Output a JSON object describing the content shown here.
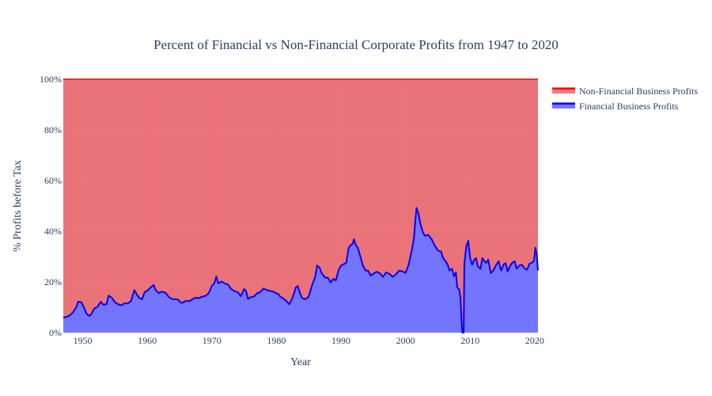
{
  "chart_data": {
    "type": "area",
    "title": "Percent of Financial vs Non-Financial Corporate Profits from 1947 to 2020",
    "xlabel": "Year",
    "ylabel": "% Profits before Tax",
    "xlim": [
      1947,
      2020.5
    ],
    "ylim": [
      0,
      100
    ],
    "x_ticks": [
      1950,
      1960,
      1970,
      1980,
      1990,
      2000,
      2010,
      2020
    ],
    "y_ticks": [
      0,
      20,
      40,
      60,
      80,
      100
    ],
    "y_tick_suffix": "%",
    "stacked": true,
    "legend_position": "top-right",
    "grid": true,
    "series": [
      {
        "name": "Non-Financial Business Profits",
        "color": "#ff0000",
        "fill": "rgba(237,40,45,0.62)",
        "note": "stacked to 100 on top of financial share"
      },
      {
        "name": "Financial Business Profits",
        "color": "#0000ff",
        "fill": "rgba(90,90,255,0.82)",
        "points": [
          [
            1947.0,
            6
          ],
          [
            1947.5,
            6.2
          ],
          [
            1948.0,
            6.8
          ],
          [
            1948.5,
            8
          ],
          [
            1949.0,
            10
          ],
          [
            1949.3,
            12.2
          ],
          [
            1949.8,
            12
          ],
          [
            1950.2,
            10
          ],
          [
            1950.6,
            7.5
          ],
          [
            1951.0,
            6.6
          ],
          [
            1951.3,
            7.2
          ],
          [
            1951.8,
            9.5
          ],
          [
            1952.3,
            10.2
          ],
          [
            1952.8,
            12.2
          ],
          [
            1953.2,
            11
          ],
          [
            1953.7,
            11.2
          ],
          [
            1954.0,
            14.6
          ],
          [
            1954.5,
            13.8
          ],
          [
            1955.0,
            12
          ],
          [
            1955.5,
            11.2
          ],
          [
            1956.0,
            10.8
          ],
          [
            1956.5,
            11.6
          ],
          [
            1957.0,
            11.5
          ],
          [
            1957.5,
            12.5
          ],
          [
            1958.0,
            16.8
          ],
          [
            1958.4,
            15
          ],
          [
            1958.8,
            13.6
          ],
          [
            1959.2,
            13.2
          ],
          [
            1959.6,
            16
          ],
          [
            1960.0,
            16.5
          ],
          [
            1960.5,
            17.8
          ],
          [
            1961.0,
            18.8
          ],
          [
            1961.3,
            16.8
          ],
          [
            1961.8,
            15.6
          ],
          [
            1962.2,
            16.2
          ],
          [
            1962.8,
            15.8
          ],
          [
            1963.3,
            14.2
          ],
          [
            1963.8,
            13.3
          ],
          [
            1964.3,
            13.2
          ],
          [
            1964.8,
            13
          ],
          [
            1965.2,
            11.8
          ],
          [
            1965.6,
            12
          ],
          [
            1966.0,
            12.6
          ],
          [
            1966.5,
            12.4
          ],
          [
            1967.0,
            13.2
          ],
          [
            1967.5,
            13.8
          ],
          [
            1968.0,
            13.6
          ],
          [
            1968.5,
            14.2
          ],
          [
            1969.0,
            14.5
          ],
          [
            1969.5,
            15.5
          ],
          [
            1970.0,
            18.4
          ],
          [
            1970.4,
            19.6
          ],
          [
            1970.7,
            22.2
          ],
          [
            1971.0,
            19.4
          ],
          [
            1971.5,
            20.2
          ],
          [
            1972.0,
            19.4
          ],
          [
            1972.5,
            19
          ],
          [
            1973.0,
            17.2
          ],
          [
            1973.5,
            16.4
          ],
          [
            1974.0,
            16
          ],
          [
            1974.5,
            14.4
          ],
          [
            1975.0,
            17.2
          ],
          [
            1975.3,
            16.4
          ],
          [
            1975.6,
            13.3
          ],
          [
            1976.0,
            14
          ],
          [
            1976.5,
            14.2
          ],
          [
            1977.0,
            15.5
          ],
          [
            1977.5,
            16
          ],
          [
            1978.0,
            17.4
          ],
          [
            1978.5,
            16.8
          ],
          [
            1979.0,
            16.5
          ],
          [
            1979.5,
            16.2
          ],
          [
            1980.0,
            15.5
          ],
          [
            1980.3,
            15.2
          ],
          [
            1980.6,
            14.2
          ],
          [
            1981.0,
            13.6
          ],
          [
            1981.5,
            12.6
          ],
          [
            1982.0,
            11.2
          ],
          [
            1982.5,
            13.8
          ],
          [
            1983.0,
            17.8
          ],
          [
            1983.3,
            18.4
          ],
          [
            1983.7,
            15.2
          ],
          [
            1984.0,
            13.6
          ],
          [
            1984.5,
            13.2
          ],
          [
            1985.0,
            14.2
          ],
          [
            1985.5,
            18.6
          ],
          [
            1986.0,
            22
          ],
          [
            1986.3,
            26.5
          ],
          [
            1986.7,
            25.6
          ],
          [
            1987.0,
            23.5
          ],
          [
            1987.5,
            21.8
          ],
          [
            1988.0,
            21.6
          ],
          [
            1988.4,
            19.8
          ],
          [
            1988.8,
            21.2
          ],
          [
            1989.2,
            20.6
          ],
          [
            1989.6,
            24.5
          ],
          [
            1990.0,
            26.5
          ],
          [
            1990.4,
            27
          ],
          [
            1990.8,
            27.5
          ],
          [
            1991.2,
            33.5
          ],
          [
            1991.5,
            34.5
          ],
          [
            1991.8,
            35
          ],
          [
            1992.0,
            36.8
          ],
          [
            1992.3,
            34.5
          ],
          [
            1992.6,
            33.5
          ],
          [
            1993.0,
            30
          ],
          [
            1993.4,
            26.5
          ],
          [
            1993.8,
            24.5
          ],
          [
            1994.2,
            24.5
          ],
          [
            1994.6,
            22.5
          ],
          [
            1995.0,
            23.2
          ],
          [
            1995.5,
            24
          ],
          [
            1996.0,
            23.5
          ],
          [
            1996.5,
            22
          ],
          [
            1997.0,
            23.8
          ],
          [
            1997.5,
            23.2
          ],
          [
            1998.0,
            22
          ],
          [
            1998.5,
            23
          ],
          [
            1999.0,
            24.5
          ],
          [
            1999.5,
            24.2
          ],
          [
            2000.0,
            23.6
          ],
          [
            2000.5,
            27
          ],
          [
            2001.0,
            33
          ],
          [
            2001.3,
            37.5
          ],
          [
            2001.5,
            44
          ],
          [
            2001.7,
            49.2
          ],
          [
            2002.0,
            47
          ],
          [
            2002.3,
            43
          ],
          [
            2002.7,
            39.5
          ],
          [
            2003.0,
            38.2
          ],
          [
            2003.5,
            38.6
          ],
          [
            2004.0,
            37
          ],
          [
            2004.5,
            34.5
          ],
          [
            2005.0,
            32.4
          ],
          [
            2005.5,
            32
          ],
          [
            2005.8,
            29.5
          ],
          [
            2006.2,
            28.2
          ],
          [
            2006.5,
            27
          ],
          [
            2006.8,
            24.5
          ],
          [
            2007.2,
            25.2
          ],
          [
            2007.5,
            22.2
          ],
          [
            2007.8,
            23.8
          ],
          [
            2008.0,
            17.8
          ],
          [
            2008.3,
            17.2
          ],
          [
            2008.5,
            14
          ],
          [
            2008.7,
            3
          ],
          [
            2008.8,
            0
          ],
          [
            2009.0,
            0
          ],
          [
            2009.1,
            27
          ],
          [
            2009.4,
            34
          ],
          [
            2009.7,
            36.2
          ],
          [
            2010.0,
            29.5
          ],
          [
            2010.3,
            26.8
          ],
          [
            2010.6,
            28.6
          ],
          [
            2010.9,
            29.4
          ],
          [
            2011.2,
            26.2
          ],
          [
            2011.6,
            25.2
          ],
          [
            2011.9,
            29.4
          ],
          [
            2012.2,
            28.2
          ],
          [
            2012.5,
            27.5
          ],
          [
            2012.8,
            28.8
          ],
          [
            2013.2,
            23.5
          ],
          [
            2013.6,
            24.5
          ],
          [
            2014.0,
            26.6
          ],
          [
            2014.4,
            28.2
          ],
          [
            2014.8,
            24.5
          ],
          [
            2015.2,
            27
          ],
          [
            2015.5,
            27.4
          ],
          [
            2015.8,
            24.2
          ],
          [
            2016.2,
            26.4
          ],
          [
            2016.5,
            27.5
          ],
          [
            2016.9,
            28.2
          ],
          [
            2017.2,
            25.2
          ],
          [
            2017.6,
            26.5
          ],
          [
            2018.0,
            26.8
          ],
          [
            2018.5,
            25.2
          ],
          [
            2018.8,
            24.8
          ],
          [
            2019.2,
            27.2
          ],
          [
            2019.6,
            27.6
          ],
          [
            2019.9,
            28.5
          ],
          [
            2020.1,
            33.5
          ],
          [
            2020.3,
            31
          ],
          [
            2020.5,
            24.5
          ]
        ]
      }
    ]
  }
}
